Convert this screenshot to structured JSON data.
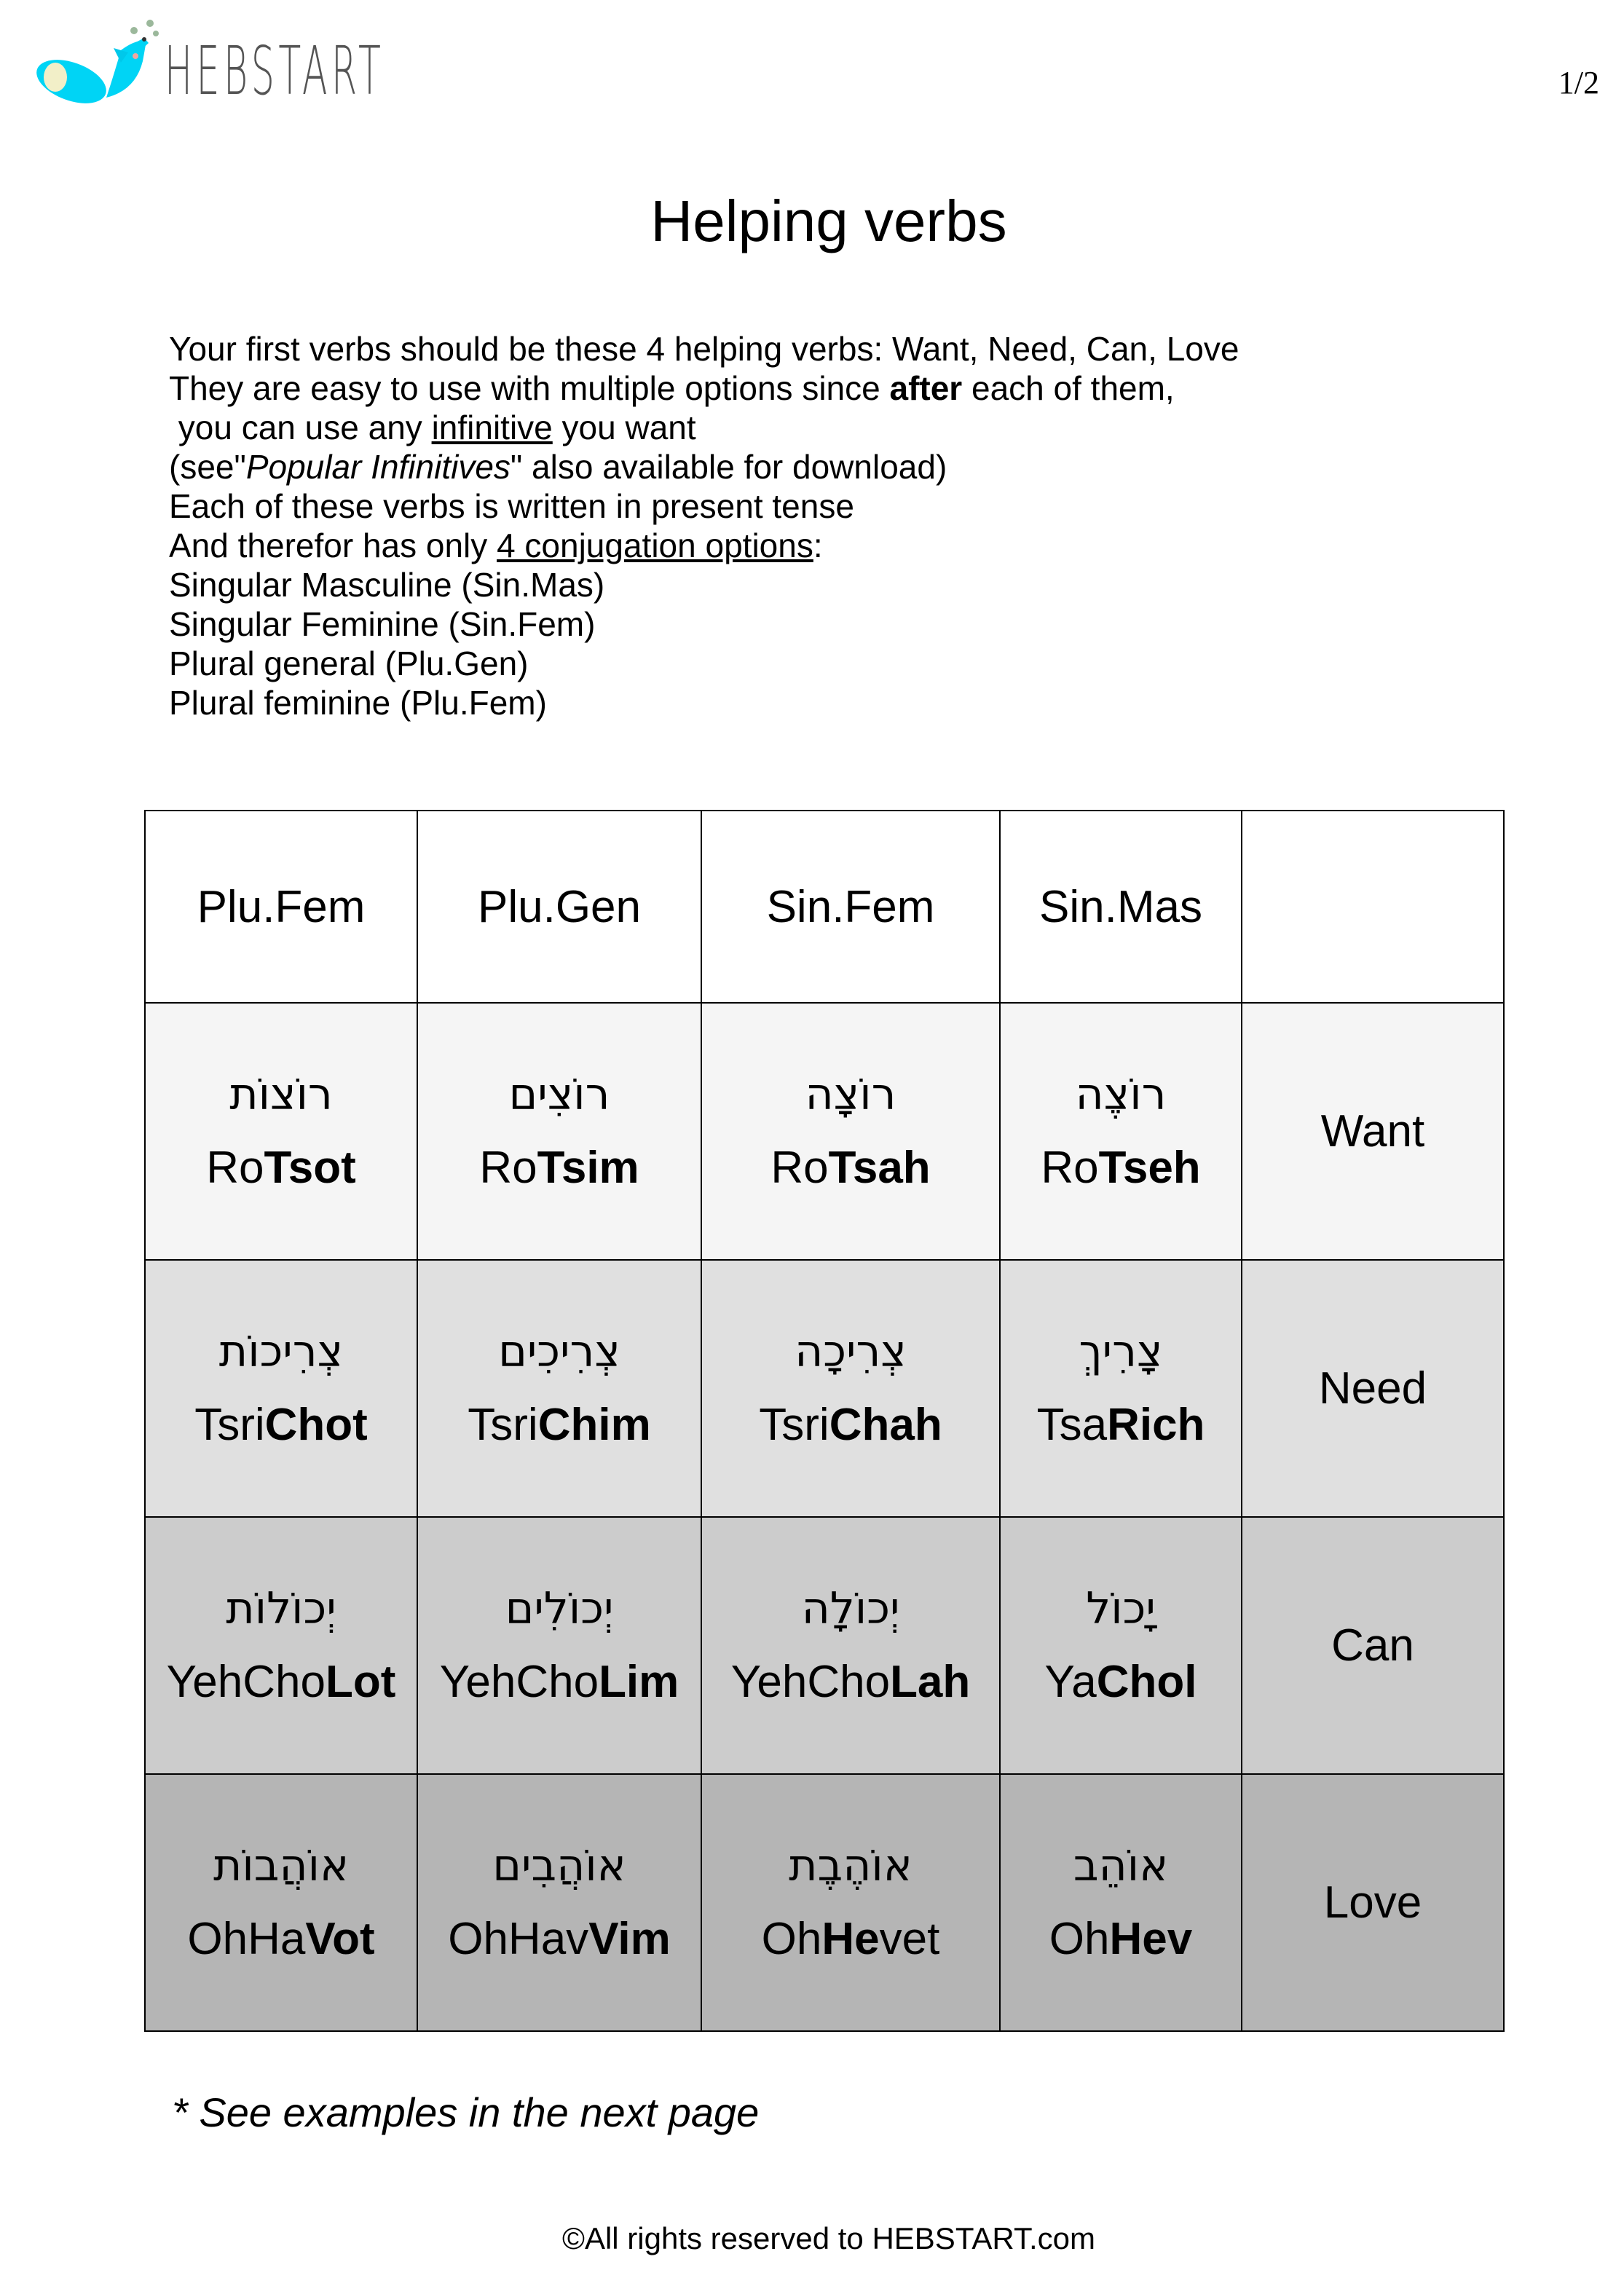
{
  "header": {
    "logo_text": "HEBSTART",
    "page_number": "1/2"
  },
  "title": "Helping verbs",
  "intro": {
    "line1": "Your first verbs should be these 4 helping verbs: Want, Need, Can, Love",
    "line2_a": "They are easy to use with multiple options since ",
    "line2_bold": "after",
    "line2_b": " each of them,",
    "line3_a": " you can use any ",
    "line3_link": "infinitive",
    "line3_b": " you want",
    "line4_a": "(see\"",
    "line4_italic": "Popular Infinitives",
    "line4_b": "\" also available for download)",
    "line5": "Each of these verbs is written in present tense",
    "line6_a": "And therefor has only ",
    "line6_link": "4 conjugation options",
    "line6_b": ":",
    "line7": "Singular Masculine (Sin.Mas)",
    "line8": "Singular Feminine (Sin.Fem)",
    "line9": "Plural general (Plu.Gen)",
    "line10": "Plural feminine (Plu.Fem)"
  },
  "table": {
    "headers": [
      "Plu.Fem",
      "Plu.Gen",
      "Sin.Fem",
      "Sin.Mas",
      ""
    ],
    "row_colors": [
      "#f5f5f5",
      "#e0e0e0",
      "#cccccc",
      "#b5b5b5"
    ],
    "rows": [
      {
        "verb": "Want",
        "cells": [
          {
            "hebrew": "רוֹצוֹת",
            "pre": "Ro",
            "bold": "Tsot",
            "post": ""
          },
          {
            "hebrew": "רוֹצִים",
            "pre": "Ro",
            "bold": "Tsim",
            "post": ""
          },
          {
            "hebrew": "רוֹצָה",
            "pre": "Ro",
            "bold": "Tsah",
            "post": ""
          },
          {
            "hebrew": "רוֹצֶה",
            "pre": "Ro",
            "bold": "Tseh",
            "post": ""
          }
        ]
      },
      {
        "verb": "Need",
        "cells": [
          {
            "hebrew": "צְרִיכוֹת",
            "pre": "Tsri",
            "bold": "Chot",
            "post": ""
          },
          {
            "hebrew": "צְרִיכִים",
            "pre": "Tsri",
            "bold": "Chim",
            "post": ""
          },
          {
            "hebrew": "צְרִיכָה",
            "pre": "Tsri",
            "bold": "Chah",
            "post": ""
          },
          {
            "hebrew": "צָרִיךְ",
            "pre": "Tsa",
            "bold": "Rich",
            "post": ""
          }
        ]
      },
      {
        "verb": "Can",
        "cells": [
          {
            "hebrew": "יְכוֹלוֹת",
            "pre": "YehCho",
            "bold": "Lot",
            "post": ""
          },
          {
            "hebrew": "יְכוֹלִים",
            "pre": "YehCho",
            "bold": "Lim",
            "post": ""
          },
          {
            "hebrew": "יְכוֹלָה",
            "pre": "YehCho",
            "bold": "Lah",
            "post": ""
          },
          {
            "hebrew": "יָכוֹל",
            "pre": "Ya",
            "bold": "Chol",
            "post": ""
          }
        ]
      },
      {
        "verb": "Love",
        "cells": [
          {
            "hebrew": "אוֹהֲבוֹת",
            "pre": "OhHa",
            "bold": "Vot",
            "post": ""
          },
          {
            "hebrew": "אוֹהֲבִים",
            "pre": "OhHav",
            "bold": "Vim",
            "post": ""
          },
          {
            "hebrew": "אוֹהֶבֶת",
            "pre": "Oh",
            "bold": "He",
            "post": "vet"
          },
          {
            "hebrew": "אוֹהֵב",
            "pre": "Oh",
            "bold": "Hev",
            "post": ""
          }
        ]
      }
    ]
  },
  "note": "* See examples in the next page",
  "footer": "©All rights reserved to HEBSTART.com"
}
